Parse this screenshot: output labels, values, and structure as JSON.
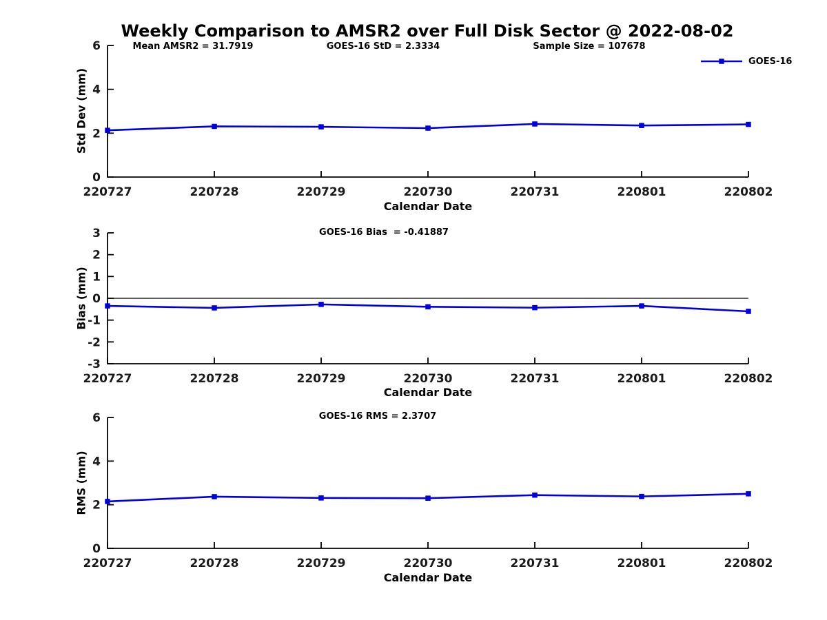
{
  "title": "Weekly Comparison to AMSR2 over Full Disk Sector @ 2022-08-02",
  "colors": {
    "line": "#0000dd",
    "axis": "#000000",
    "text": "#000000",
    "background": "#ffffff"
  },
  "chart_data": [
    {
      "type": "line",
      "annotations": [
        "Mean AMSR2 = 31.7919",
        "GOES-16 StD = 2.3334",
        "Sample Size = 107678"
      ],
      "xlabel": "Calendar Date",
      "ylabel": "Std Dev (mm)",
      "categories": [
        "220727",
        "220728",
        "220729",
        "220730",
        "220731",
        "220801",
        "220802"
      ],
      "series": [
        {
          "name": "GOES-16",
          "values": [
            2.13,
            2.31,
            2.29,
            2.23,
            2.42,
            2.35,
            2.4
          ]
        }
      ],
      "ylim": [
        0,
        6
      ],
      "yticks": [
        0,
        2,
        4,
        6
      ],
      "zero_line": false,
      "legend_position": "top-right",
      "grid": false
    },
    {
      "type": "line",
      "annotations": [
        "GOES-16 Bias  = -0.41887"
      ],
      "xlabel": "Calendar Date",
      "ylabel": "Bias (mm)",
      "categories": [
        "220727",
        "220728",
        "220729",
        "220730",
        "220731",
        "220801",
        "220802"
      ],
      "series": [
        {
          "name": "GOES-16",
          "values": [
            -0.35,
            -0.44,
            -0.28,
            -0.39,
            -0.43,
            -0.35,
            -0.6
          ]
        }
      ],
      "ylim": [
        -3,
        3
      ],
      "yticks": [
        -3,
        -2,
        -1,
        0,
        1,
        2,
        3
      ],
      "zero_line": true,
      "legend_position": "none",
      "grid": false
    },
    {
      "type": "line",
      "annotations": [
        "GOES-16 RMS = 2.3707"
      ],
      "xlabel": "Calendar Date",
      "ylabel": "RMS (mm)",
      "categories": [
        "220727",
        "220728",
        "220729",
        "220730",
        "220731",
        "220801",
        "220802"
      ],
      "series": [
        {
          "name": "GOES-16",
          "values": [
            2.15,
            2.37,
            2.31,
            2.3,
            2.44,
            2.38,
            2.5
          ]
        }
      ],
      "ylim": [
        0,
        6
      ],
      "yticks": [
        0,
        2,
        4,
        6
      ],
      "zero_line": false,
      "legend_position": "none",
      "grid": false
    }
  ]
}
